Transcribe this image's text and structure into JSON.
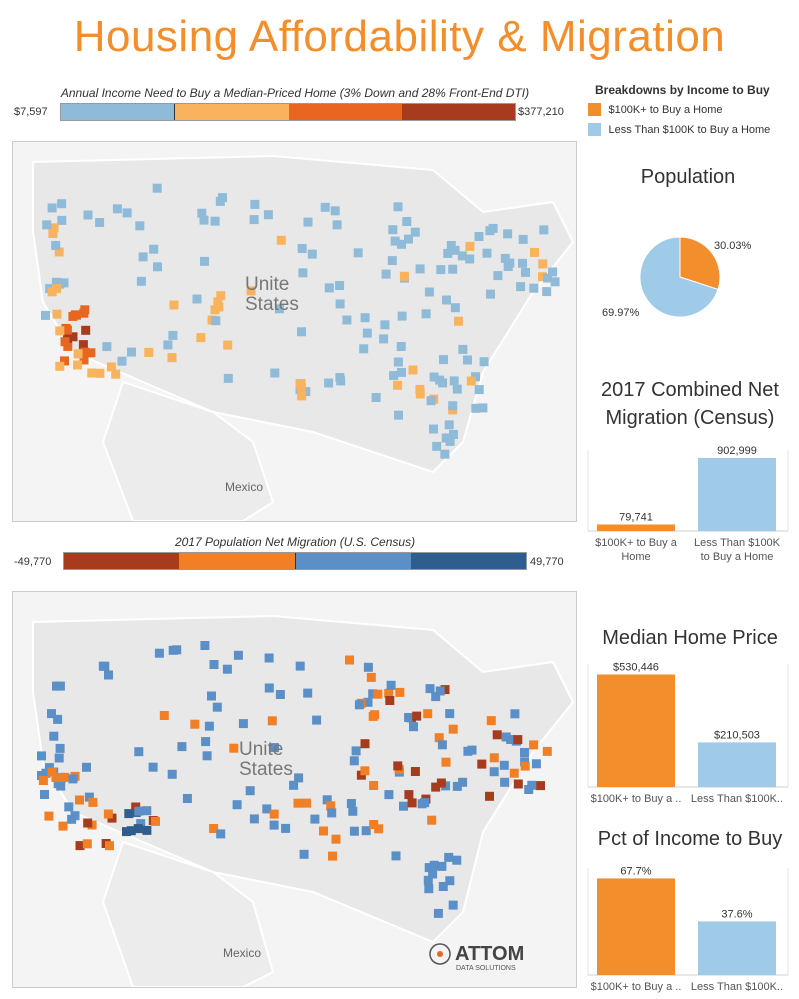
{
  "title": "Housing Affordability & Migration",
  "income_legend": {
    "title": "Annual Income Need to Buy a Median-Priced Home (3% Down and 28% Front-End DTI)",
    "min_label": "$7,597",
    "max_label": "$377,210",
    "colors": [
      "#8fbbd9",
      "#f9b35e",
      "#e8661f",
      "#a63b1d"
    ]
  },
  "breakdown_legend": {
    "title": "Breakdowns by Income to Buy",
    "items": [
      {
        "label": "$100K+ to Buy a Home",
        "color": "#f28e2b"
      },
      {
        "label": "Less Than $100K to Buy a Home",
        "color": "#a0cbe8"
      }
    ]
  },
  "migration_legend": {
    "title": "2017 Population Net Migration (U.S. Census)",
    "min_label": "-49,770",
    "max_label": "49,770",
    "colors": [
      "#a63b1d",
      "#f07f25",
      "#5b8fc7",
      "#2f5e8e"
    ]
  },
  "map_labels": {
    "country": "United States",
    "country_line1": "Unite",
    "country_line2": "States",
    "mexico": "Mexico"
  },
  "logo": {
    "brand": "ATTOM",
    "sub": "DATA SOLUTIONS"
  },
  "chart_data": [
    {
      "type": "pie",
      "title": "Population",
      "slices": [
        {
          "name": "$100K+ to Buy a Home",
          "value": 30.03,
          "label": "30.03%",
          "color": "#f28e2b"
        },
        {
          "name": "Less Than $100K to Buy a Home",
          "value": 69.97,
          "label": "69.97%",
          "color": "#a0cbe8"
        }
      ]
    },
    {
      "type": "bar",
      "title_line1": "2017 Combined Net",
      "title_line2": "Migration (Census)",
      "categories": [
        {
          "line1": "$100K+ to Buy a",
          "line2": "Home"
        },
        {
          "line1": "Less Than $100K",
          "line2": "to Buy a Home"
        }
      ],
      "values": [
        79741,
        902999
      ],
      "labels": [
        "79,741",
        "902,999"
      ],
      "colors": [
        "#f28e2b",
        "#a0cbe8"
      ],
      "ylim": [
        0,
        1000000
      ]
    },
    {
      "type": "bar",
      "title": "Median Home Price",
      "categories": [
        "$100K+ to Buy a ..",
        "Less Than $100K.."
      ],
      "values": [
        530446,
        210503
      ],
      "labels": [
        "$530,446",
        "$210,503"
      ],
      "colors": [
        "#f28e2b",
        "#a0cbe8"
      ],
      "ylim": [
        0,
        580000
      ]
    },
    {
      "type": "bar",
      "title": "Pct of Income to Buy",
      "categories": [
        "$100K+ to Buy a ..",
        "Less Than $100K.."
      ],
      "values": [
        67.7,
        37.6
      ],
      "labels": [
        "67.7%",
        "37.6%"
      ],
      "colors": [
        "#f28e2b",
        "#a0cbe8"
      ],
      "ylim": [
        0,
        75
      ]
    }
  ]
}
